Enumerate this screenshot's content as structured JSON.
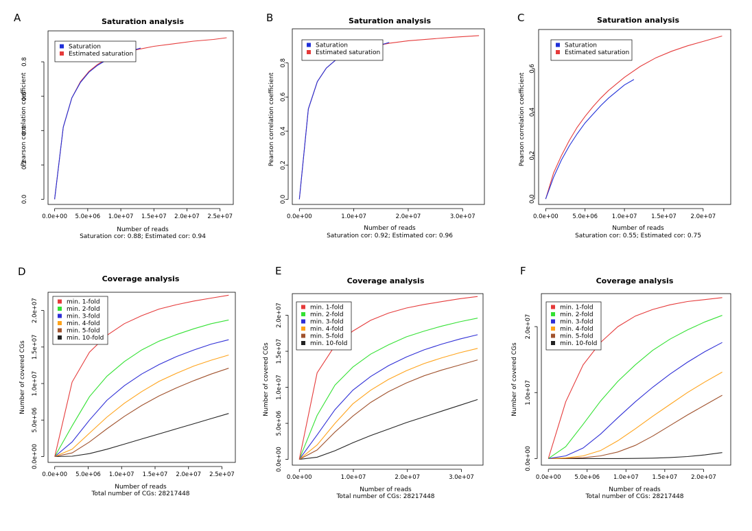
{
  "figure": {
    "background": "#ffffff"
  },
  "chart_data": [
    {
      "panel": "A",
      "type": "line",
      "title": "Saturation analysis",
      "xlabel": "Number of reads",
      "subtitle": "Saturation cor: 0.88; Estimated cor: 0.94",
      "ylabel": "Pearson correlation coefficient",
      "xlim": [
        -1000000,
        27000000
      ],
      "ylim": [
        -0.03,
        0.98
      ],
      "xticks": [
        0,
        5000000,
        10000000,
        15000000,
        20000000,
        25000000
      ],
      "xtick_labels": [
        "0.0e+00",
        "5.0e+06",
        "1.0e+07",
        "1.5e+07",
        "2.0e+07",
        "2.5e+07"
      ],
      "yticks": [
        0,
        0.2,
        0.4,
        0.6,
        0.8
      ],
      "ytick_labels": [
        "0.0",
        "0.2",
        "0.4",
        "0.6",
        "0.8"
      ],
      "legend_position": "top-left",
      "series": [
        {
          "name": "Saturation",
          "color": "#1f2fd8",
          "x": [
            0,
            1300000,
            2600000,
            3900000,
            5200000,
            6500000,
            7800000,
            9100000,
            10400000,
            11700000,
            13000000
          ],
          "y": [
            0,
            0.42,
            0.59,
            0.68,
            0.74,
            0.78,
            0.81,
            0.83,
            0.85,
            0.865,
            0.88
          ]
        },
        {
          "name": "Estimated saturation",
          "color": "#e53a3a",
          "x": [
            0,
            1300000,
            2600000,
            3900000,
            5200000,
            6500000,
            7800000,
            9100000,
            10400000,
            11700000,
            13000000,
            15000000,
            18000000,
            21000000,
            24000000,
            26000000
          ],
          "y": [
            0,
            0.42,
            0.59,
            0.685,
            0.745,
            0.785,
            0.815,
            0.835,
            0.855,
            0.865,
            0.875,
            0.89,
            0.905,
            0.92,
            0.93,
            0.94
          ]
        }
      ]
    },
    {
      "panel": "B",
      "type": "line",
      "title": "Saturation analysis",
      "xlabel": "Number of reads",
      "subtitle": "Saturation cor: 0.92; Estimated cor: 0.96",
      "ylabel": "Pearson correlation coefficient",
      "xlim": [
        -1300000,
        34000000
      ],
      "ylim": [
        -0.03,
        1.0
      ],
      "xticks": [
        0,
        10000000,
        20000000,
        30000000
      ],
      "xtick_labels": [
        "0.0e+00",
        "1.0e+07",
        "2.0e+07",
        "3.0e+07"
      ],
      "yticks": [
        0,
        0.2,
        0.4,
        0.6,
        0.8
      ],
      "ytick_labels": [
        "0.0",
        "0.2",
        "0.4",
        "0.6",
        "0.8"
      ],
      "legend_position": "top-left",
      "series": [
        {
          "name": "Saturation",
          "color": "#1f2fd8",
          "x": [
            0,
            1650000,
            3300000,
            4950000,
            6600000,
            8250000,
            9900000,
            11550000,
            13200000,
            14850000,
            16500000
          ],
          "y": [
            0,
            0.53,
            0.69,
            0.77,
            0.815,
            0.845,
            0.865,
            0.88,
            0.895,
            0.905,
            0.92
          ]
        },
        {
          "name": "Estimated saturation",
          "color": "#e53a3a",
          "x": [
            0,
            1650000,
            3300000,
            4950000,
            6600000,
            8250000,
            9900000,
            11550000,
            13200000,
            14850000,
            16500000,
            20000000,
            24000000,
            28000000,
            33000000
          ],
          "y": [
            0,
            0.53,
            0.69,
            0.77,
            0.815,
            0.845,
            0.865,
            0.88,
            0.895,
            0.905,
            0.915,
            0.93,
            0.94,
            0.95,
            0.96
          ]
        }
      ]
    },
    {
      "panel": "C",
      "type": "line",
      "title": "Saturation analysis",
      "xlabel": "Number of reads",
      "subtitle": "Saturation cor: 0.55; Estimated cor: 0.75",
      "ylabel": "Pearson correlation coefficient",
      "xlim": [
        -900000,
        23500000
      ],
      "ylim": [
        -0.025,
        0.78
      ],
      "xticks": [
        0,
        5000000,
        10000000,
        15000000,
        20000000
      ],
      "xtick_labels": [
        "0.0e+00",
        "5.0e+06",
        "1.0e+07",
        "1.5e+07",
        "2.0e+07"
      ],
      "yticks": [
        0,
        0.2,
        0.4,
        0.6
      ],
      "ytick_labels": [
        "0.0",
        "0.2",
        "0.4",
        "0.6"
      ],
      "legend_position": "top-left",
      "series": [
        {
          "name": "Saturation",
          "color": "#1f2fd8",
          "x": [
            0,
            1000000,
            2000000,
            3000000,
            4000000,
            5000000,
            6000000,
            7000000,
            8000000,
            9000000,
            10000000,
            11200000
          ],
          "y": [
            0,
            0.1,
            0.18,
            0.245,
            0.3,
            0.35,
            0.39,
            0.43,
            0.465,
            0.495,
            0.525,
            0.55
          ]
        },
        {
          "name": "Estimated saturation",
          "color": "#e53a3a",
          "x": [
            0,
            1000000,
            2000000,
            3000000,
            4000000,
            5000000,
            6000000,
            7000000,
            8000000,
            9000000,
            10000000,
            12000000,
            14000000,
            16000000,
            18000000,
            20000000,
            22400000
          ],
          "y": [
            0,
            0.12,
            0.2,
            0.27,
            0.33,
            0.38,
            0.425,
            0.465,
            0.5,
            0.53,
            0.56,
            0.61,
            0.65,
            0.68,
            0.705,
            0.725,
            0.75
          ]
        }
      ]
    },
    {
      "panel": "D",
      "type": "line",
      "title": "Coverage analysis",
      "xlabel": "Number of reads",
      "subtitle": "Total number of CGs: 28217448",
      "ylabel": "Number of covered CGs",
      "xlim": [
        -1000000,
        27000000
      ],
      "ylim": [
        -800000,
        22500000
      ],
      "xticks": [
        0,
        5000000,
        10000000,
        15000000,
        20000000,
        25000000
      ],
      "xtick_labels": [
        "0.0e+00",
        "5.0e+06",
        "1.0e+07",
        "1.5e+07",
        "2.0e+07",
        "2.5e+07"
      ],
      "yticks": [
        0,
        5000000,
        10000000,
        15000000,
        20000000
      ],
      "ytick_labels": [
        "0.0e+00",
        "5.0e+06",
        "1.0e+07",
        "1.5e+07",
        "2.0e+07"
      ],
      "legend_position": "top-left",
      "x": [
        0,
        2600000,
        5200000,
        7800000,
        10400000,
        13000000,
        15600000,
        18200000,
        20800000,
        23400000,
        26000000
      ],
      "series": [
        {
          "name": "min. 1-fold",
          "color": "#e53a3a",
          "values": [
            0,
            10200000,
            14300000,
            16600000,
            18200000,
            19300000,
            20200000,
            20800000,
            21300000,
            21700000,
            22100000
          ]
        },
        {
          "name": "min. 2-fold",
          "color": "#33e133",
          "values": [
            0,
            4200000,
            8200000,
            11000000,
            13000000,
            14600000,
            15800000,
            16700000,
            17500000,
            18200000,
            18700000
          ]
        },
        {
          "name": "min. 3-fold",
          "color": "#2e2ed6",
          "values": [
            0,
            2000000,
            5000000,
            7700000,
            9700000,
            11300000,
            12600000,
            13700000,
            14600000,
            15400000,
            16000000
          ]
        },
        {
          "name": "min. 4-fold",
          "color": "#ffa31a",
          "values": [
            0,
            1000000,
            3200000,
            5400000,
            7300000,
            8900000,
            10300000,
            11400000,
            12400000,
            13200000,
            13900000
          ]
        },
        {
          "name": "min. 5-fold",
          "color": "#a0522d",
          "values": [
            0,
            500000,
            2000000,
            3800000,
            5500000,
            7000000,
            8300000,
            9400000,
            10400000,
            11300000,
            12100000
          ]
        },
        {
          "name": "min. 10-fold",
          "color": "#222222",
          "values": [
            0,
            50000,
            400000,
            1000000,
            1700000,
            2400000,
            3100000,
            3800000,
            4500000,
            5200000,
            5900000
          ]
        }
      ]
    },
    {
      "panel": "E",
      "type": "line",
      "title": "Coverage analysis",
      "xlabel": "Number of reads",
      "subtitle": "Total number of CGs: 28217448",
      "ylabel": "Number of covered CGs",
      "xlim": [
        -1300000,
        34000000
      ],
      "ylim": [
        -800000,
        23000000
      ],
      "xticks": [
        0,
        10000000,
        20000000,
        30000000
      ],
      "xtick_labels": [
        "0.0e+00",
        "1.0e+07",
        "2.0e+07",
        "3.0e+07"
      ],
      "yticks": [
        0,
        5000000,
        10000000,
        15000000,
        20000000
      ],
      "ytick_labels": [
        "0.0e+00",
        "5.0e+06",
        "1.0e+07",
        "1.5e+07",
        "2.0e+07"
      ],
      "legend_position": "top-left",
      "x": [
        0,
        3300000,
        6600000,
        9900000,
        13200000,
        16500000,
        19800000,
        23100000,
        26400000,
        29700000,
        33000000
      ],
      "series": [
        {
          "name": "min. 1-fold",
          "color": "#e53a3a",
          "values": [
            0,
            12000000,
            15800000,
            17800000,
            19300000,
            20300000,
            21000000,
            21500000,
            21900000,
            22300000,
            22600000
          ]
        },
        {
          "name": "min. 2-fold",
          "color": "#33e133",
          "values": [
            0,
            6100000,
            10300000,
            12800000,
            14600000,
            15900000,
            17000000,
            17800000,
            18500000,
            19100000,
            19600000
          ]
        },
        {
          "name": "min. 3-fold",
          "color": "#2e2ed6",
          "values": [
            0,
            3400000,
            6900000,
            9600000,
            11500000,
            13000000,
            14200000,
            15200000,
            16000000,
            16700000,
            17300000
          ]
        },
        {
          "name": "min. 4-fold",
          "color": "#ffa31a",
          "values": [
            0,
            2000000,
            5000000,
            7700000,
            9600000,
            11100000,
            12300000,
            13300000,
            14100000,
            14800000,
            15400000
          ]
        },
        {
          "name": "min. 5-fold",
          "color": "#a0522d",
          "values": [
            0,
            1300000,
            3800000,
            6000000,
            7900000,
            9400000,
            10600000,
            11600000,
            12400000,
            13100000,
            13800000
          ]
        },
        {
          "name": "min. 10-fold",
          "color": "#222222",
          "values": [
            0,
            300000,
            1200000,
            2300000,
            3300000,
            4200000,
            5100000,
            5900000,
            6700000,
            7500000,
            8300000
          ]
        }
      ]
    },
    {
      "panel": "F",
      "type": "line",
      "title": "Coverage analysis",
      "xlabel": "Number of reads",
      "subtitle": "Total number of CGs: 28217448",
      "ylabel": "Number of covered CGs",
      "xlim": [
        -900000,
        23500000
      ],
      "ylim": [
        -1000000,
        25000000
      ],
      "xticks": [
        0,
        5000000,
        10000000,
        15000000,
        20000000
      ],
      "xtick_labels": [
        "0.0e+00",
        "5.0e+06",
        "1.0e+07",
        "1.5e+07",
        "2.0e+07"
      ],
      "yticks": [
        0,
        10000000,
        20000000
      ],
      "ytick_labels": [
        "0.0e+00",
        "1.0e+07",
        "2.0e+07"
      ],
      "legend_position": "top-left",
      "x": [
        0,
        2240000,
        4480000,
        6720000,
        8960000,
        11200000,
        13440000,
        15680000,
        17920000,
        20160000,
        22400000
      ],
      "series": [
        {
          "name": "min. 1-fold",
          "color": "#e53a3a",
          "values": [
            0,
            8600000,
            14200000,
            17600000,
            20000000,
            21600000,
            22600000,
            23300000,
            23800000,
            24100000,
            24400000
          ]
        },
        {
          "name": "min. 2-fold",
          "color": "#33e133",
          "values": [
            0,
            1800000,
            5200000,
            8700000,
            11700000,
            14200000,
            16400000,
            18100000,
            19500000,
            20700000,
            21700000
          ]
        },
        {
          "name": "min. 3-fold",
          "color": "#2e2ed6",
          "values": [
            0,
            400000,
            1600000,
            3700000,
            6200000,
            8600000,
            10800000,
            12800000,
            14600000,
            16200000,
            17600000
          ]
        },
        {
          "name": "min. 4-fold",
          "color": "#ffa31a",
          "values": [
            0,
            100000,
            400000,
            1200000,
            2700000,
            4500000,
            6400000,
            8200000,
            10000000,
            11600000,
            13100000
          ]
        },
        {
          "name": "min. 5-fold",
          "color": "#a0522d",
          "values": [
            0,
            30000,
            120000,
            400000,
            1000000,
            2000000,
            3400000,
            5000000,
            6600000,
            8100000,
            9600000
          ]
        },
        {
          "name": "min. 10-fold",
          "color": "#222222",
          "values": [
            0,
            0,
            0,
            0,
            0,
            20000,
            60000,
            150000,
            300000,
            550000,
            900000
          ]
        }
      ]
    }
  ]
}
